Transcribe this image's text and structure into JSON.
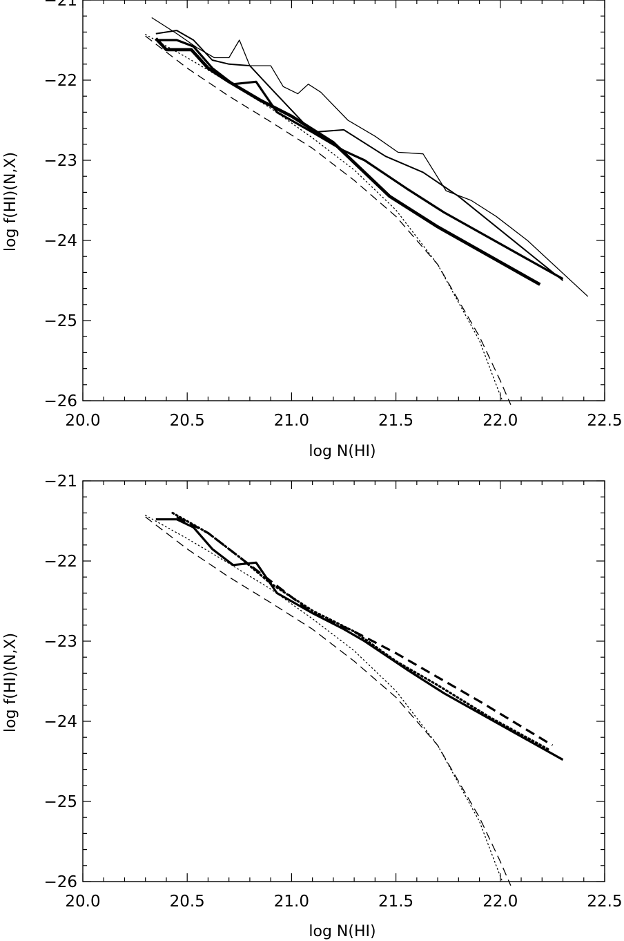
{
  "chart_data": [
    {
      "type": "line",
      "title": "",
      "xlabel": "log N(HI)",
      "ylabel": "log f(HI)(N,X)",
      "xlim": [
        20.0,
        22.5
      ],
      "ylim": [
        -26,
        -21
      ],
      "xticks": [
        "20.0",
        "20.5",
        "21.0",
        "21.5",
        "22.0",
        "22.5"
      ],
      "yticks": [
        "-21",
        "-22",
        "-23",
        "-24",
        "-25",
        "-26"
      ],
      "grid": false,
      "legend": "none",
      "series": [
        {
          "style": "solid",
          "weight": 1,
          "x": [
            20.33,
            20.45,
            20.55,
            20.63,
            20.7,
            20.75,
            20.8,
            20.84,
            20.9,
            20.96,
            21.03,
            21.08,
            21.14,
            21.27,
            21.4,
            21.51,
            21.63,
            21.74,
            21.86,
            21.98,
            22.13,
            22.42
          ],
          "y": [
            -21.22,
            -21.42,
            -21.6,
            -21.72,
            -21.72,
            -21.5,
            -21.82,
            -21.82,
            -21.82,
            -22.08,
            -22.17,
            -22.05,
            -22.15,
            -22.5,
            -22.7,
            -22.9,
            -22.92,
            -23.38,
            -23.5,
            -23.7,
            -24.0,
            -24.7
          ]
        },
        {
          "style": "solid",
          "weight": 2,
          "x": [
            20.35,
            20.45,
            20.53,
            20.62,
            20.7,
            20.8,
            20.9,
            21.1,
            21.25,
            21.45,
            21.63,
            21.8,
            22.3
          ],
          "y": [
            -21.42,
            -21.38,
            -21.5,
            -21.75,
            -21.8,
            -21.82,
            -22.1,
            -22.65,
            -22.62,
            -22.95,
            -23.15,
            -23.45,
            -24.5
          ]
        },
        {
          "style": "solid",
          "weight": 3,
          "x": [
            20.35,
            20.45,
            20.53,
            20.62,
            20.72,
            20.83,
            20.93,
            21.1,
            21.25,
            21.35,
            21.55,
            21.73,
            22.3
          ],
          "y": [
            -21.5,
            -21.5,
            -21.58,
            -21.85,
            -22.05,
            -22.02,
            -22.4,
            -22.65,
            -22.88,
            -23.0,
            -23.35,
            -23.65,
            -24.48
          ]
        },
        {
          "style": "solid",
          "weight": 4,
          "x": [
            20.35,
            20.4,
            20.52,
            20.6,
            20.7,
            20.85,
            21.0,
            21.2,
            21.47,
            21.7,
            22.19
          ],
          "y": [
            -21.48,
            -21.62,
            -21.62,
            -21.85,
            -22.02,
            -22.25,
            -22.45,
            -22.78,
            -23.45,
            -23.83,
            -24.55
          ]
        },
        {
          "style": "dashed",
          "weight": 1,
          "x": [
            20.3,
            20.5,
            20.7,
            20.9,
            21.1,
            21.3,
            21.5,
            21.7,
            21.9,
            22.0,
            22.05
          ],
          "y": [
            -21.45,
            -21.85,
            -22.2,
            -22.52,
            -22.85,
            -23.25,
            -23.7,
            -24.3,
            -25.2,
            -25.75,
            -26.05
          ]
        },
        {
          "style": "dotted",
          "weight": 1,
          "x": [
            20.3,
            20.5,
            20.7,
            20.9,
            21.1,
            21.3,
            21.5,
            21.7,
            21.9,
            21.98,
            22.01
          ],
          "y": [
            -21.43,
            -21.72,
            -22.03,
            -22.35,
            -22.72,
            -23.12,
            -23.62,
            -24.3,
            -25.25,
            -25.8,
            -26.0
          ]
        }
      ]
    },
    {
      "type": "line",
      "title": "",
      "xlabel": "log N(HI)",
      "ylabel": "log f(HI)(N,X)",
      "xlim": [
        20.0,
        22.5
      ],
      "ylim": [
        -26,
        -21
      ],
      "xticks": [
        "20.0",
        "20.5",
        "21.0",
        "21.5",
        "22.0",
        "22.5"
      ],
      "yticks": [
        "-21",
        "-22",
        "-23",
        "-24",
        "-25",
        "-26"
      ],
      "grid": false,
      "legend": "none",
      "series": [
        {
          "style": "solid",
          "weight": 3,
          "x": [
            20.35,
            20.45,
            20.53,
            20.62,
            20.72,
            20.83,
            20.93,
            21.1,
            21.25,
            21.35,
            21.55,
            21.73,
            22.3
          ],
          "y": [
            -21.48,
            -21.48,
            -21.58,
            -21.85,
            -22.05,
            -22.02,
            -22.4,
            -22.65,
            -22.85,
            -23.0,
            -23.35,
            -23.65,
            -24.48
          ]
        },
        {
          "style": "dashed",
          "weight": 3,
          "x": [
            20.45,
            20.6,
            20.75,
            20.9,
            21.1,
            21.3,
            21.5,
            21.7,
            21.9,
            22.25
          ],
          "y": [
            -21.45,
            -21.65,
            -21.95,
            -22.25,
            -22.65,
            -22.88,
            -23.15,
            -23.45,
            -23.75,
            -24.3
          ]
        },
        {
          "style": "dotted",
          "weight": 3,
          "x": [
            20.43,
            20.6,
            20.75,
            20.9,
            21.1,
            21.3,
            21.5,
            21.7,
            21.95,
            22.23
          ],
          "y": [
            -21.4,
            -21.65,
            -21.95,
            -22.28,
            -22.62,
            -22.88,
            -23.25,
            -23.55,
            -23.95,
            -24.35
          ]
        },
        {
          "style": "dashed",
          "weight": 1,
          "x": [
            20.3,
            20.5,
            20.7,
            20.9,
            21.1,
            21.3,
            21.5,
            21.7,
            21.9,
            22.0,
            22.05
          ],
          "y": [
            -21.45,
            -21.85,
            -22.2,
            -22.52,
            -22.85,
            -23.25,
            -23.7,
            -24.3,
            -25.2,
            -25.75,
            -26.05
          ]
        },
        {
          "style": "dotted",
          "weight": 1,
          "x": [
            20.3,
            20.5,
            20.7,
            20.9,
            21.1,
            21.3,
            21.5,
            21.7,
            21.9,
            21.98,
            22.01
          ],
          "y": [
            -21.43,
            -21.72,
            -22.03,
            -22.35,
            -22.72,
            -23.12,
            -23.62,
            -24.3,
            -25.25,
            -25.8,
            -26.0
          ]
        }
      ]
    }
  ]
}
